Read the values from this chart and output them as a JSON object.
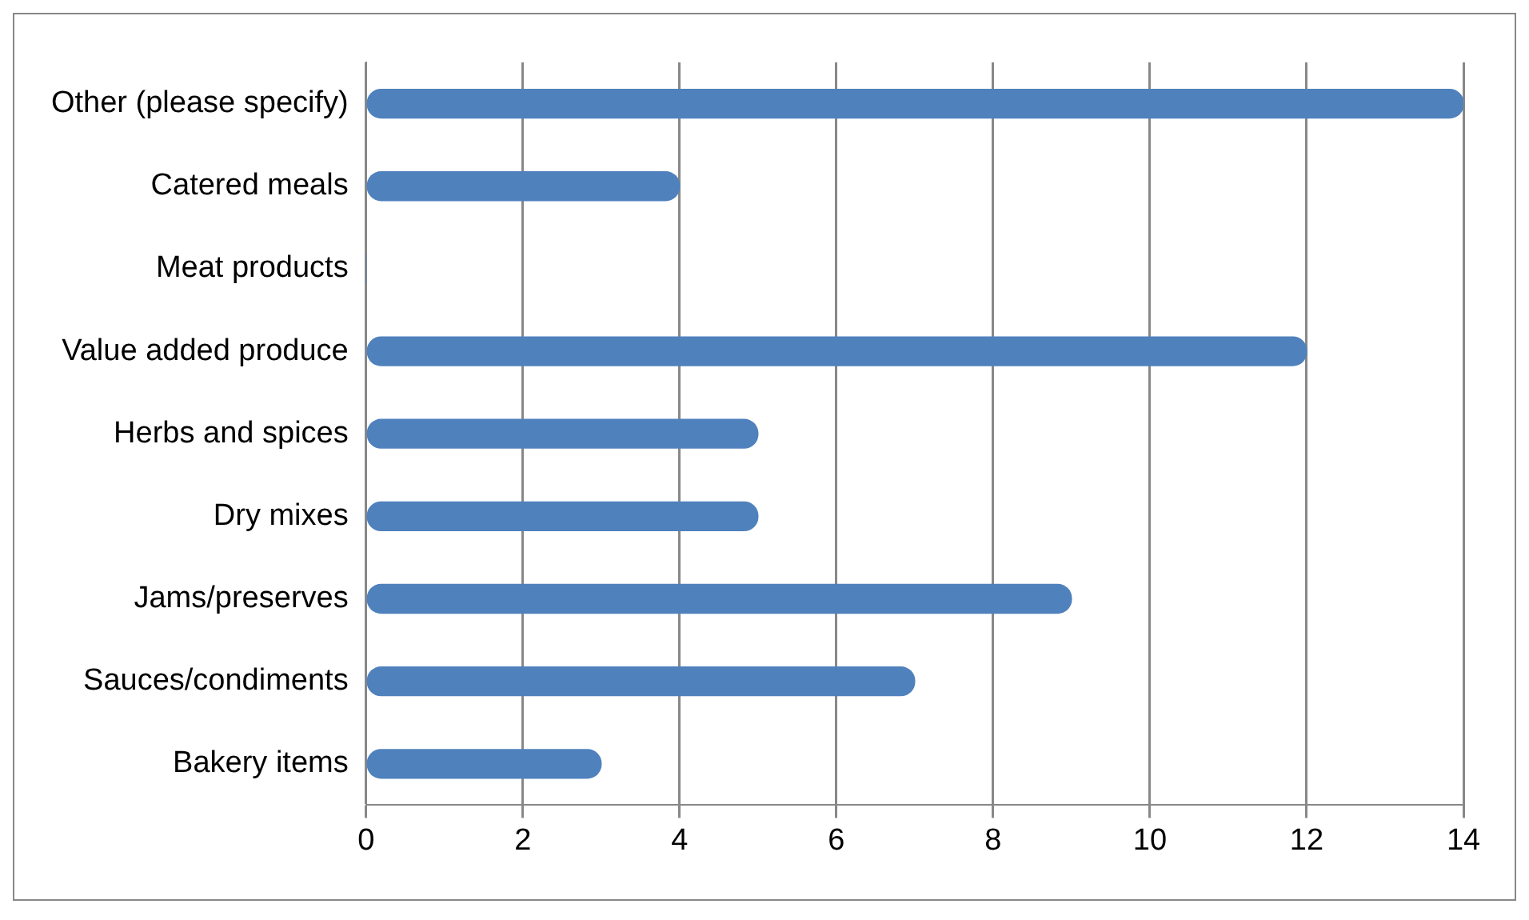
{
  "chart_data": {
    "type": "bar",
    "orientation": "horizontal",
    "categories": [
      "Other (please specify)",
      "Catered meals",
      "Meat products",
      "Value added produce",
      "Herbs and spices",
      "Dry mixes",
      "Jams/preserves",
      "Sauces/condiments",
      "Bakery items"
    ],
    "values": [
      14,
      4,
      0,
      12,
      5,
      5,
      9,
      7,
      3
    ],
    "color": "#4f81bd",
    "xlim": [
      0,
      14
    ],
    "xticks": [
      0,
      2,
      4,
      6,
      8,
      10,
      12,
      14
    ],
    "grid": "x",
    "legend": false
  }
}
